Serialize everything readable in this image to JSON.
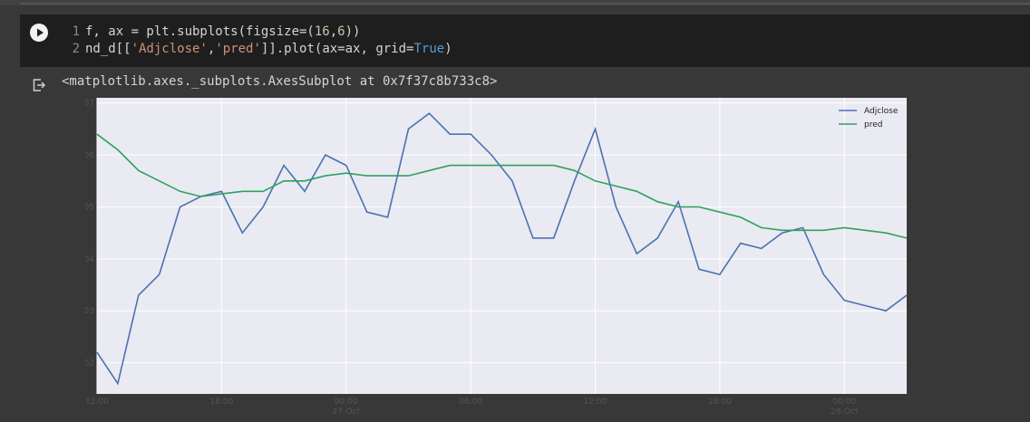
{
  "cell": {
    "line1_num": "1",
    "line1_code_a": "f, ax = plt.subplots(figsize=(",
    "line1_num_a": "16",
    "line1_comma": ",",
    "line1_num_b": "6",
    "line1_code_b": "))",
    "line2_num": "2",
    "line2_code_a": "nd_d[[",
    "line2_str_a": "'Adjclose'",
    "line2_comma": ",",
    "line2_str_b": "'pred'",
    "line2_code_b": "]].plot(ax=ax, grid=",
    "line2_kw": "True",
    "line2_code_c": ")"
  },
  "output": {
    "text": "<matplotlib.axes._subplots.AxesSubplot at 0x7f37c8b733c8>"
  },
  "colors": {
    "adjclose": "#4c72b0",
    "pred": "#2ca25f",
    "plot_bg": "#eaeaf2"
  },
  "chart_data": {
    "type": "line",
    "x_ticks": [
      "12:00",
      "18:00",
      "00:00\n27-Oct",
      "06:00",
      "12:00",
      "18:00",
      "00:00\n28-Oct"
    ],
    "y_ticks": [
      "1.102",
      "1.103",
      "1.104",
      "1.105",
      "1.106",
      "1.107"
    ],
    "ylim": [
      1.1014,
      1.1071
    ],
    "grid": true,
    "legend": "top-right",
    "series": [
      {
        "name": "Adjclose",
        "values": [
          1.1022,
          1.1016,
          1.1033,
          1.1037,
          1.105,
          1.1052,
          1.1053,
          1.1045,
          1.105,
          1.1058,
          1.1053,
          1.106,
          1.1058,
          1.1049,
          1.1048,
          1.1065,
          1.1068,
          1.1064,
          1.1064,
          1.106,
          1.1055,
          1.1044,
          1.1044,
          1.1055,
          1.1065,
          1.105,
          1.1041,
          1.1044,
          1.1051,
          1.1038,
          1.1037,
          1.1043,
          1.1042,
          1.1045,
          1.1046,
          1.1037,
          1.1032,
          1.1031,
          1.103,
          1.1033
        ]
      },
      {
        "name": "pred",
        "values": [
          1.1064,
          1.1061,
          1.1057,
          1.1055,
          1.1053,
          1.1052,
          1.10525,
          1.1053,
          1.1053,
          1.1055,
          1.1055,
          1.1056,
          1.10565,
          1.1056,
          1.1056,
          1.1056,
          1.1057,
          1.1058,
          1.1058,
          1.1058,
          1.1058,
          1.1058,
          1.1058,
          1.1057,
          1.1055,
          1.1054,
          1.1053,
          1.1051,
          1.105,
          1.105,
          1.1049,
          1.1048,
          1.1046,
          1.10455,
          1.10455,
          1.10455,
          1.1046,
          1.10455,
          1.1045,
          1.1044
        ]
      }
    ]
  }
}
